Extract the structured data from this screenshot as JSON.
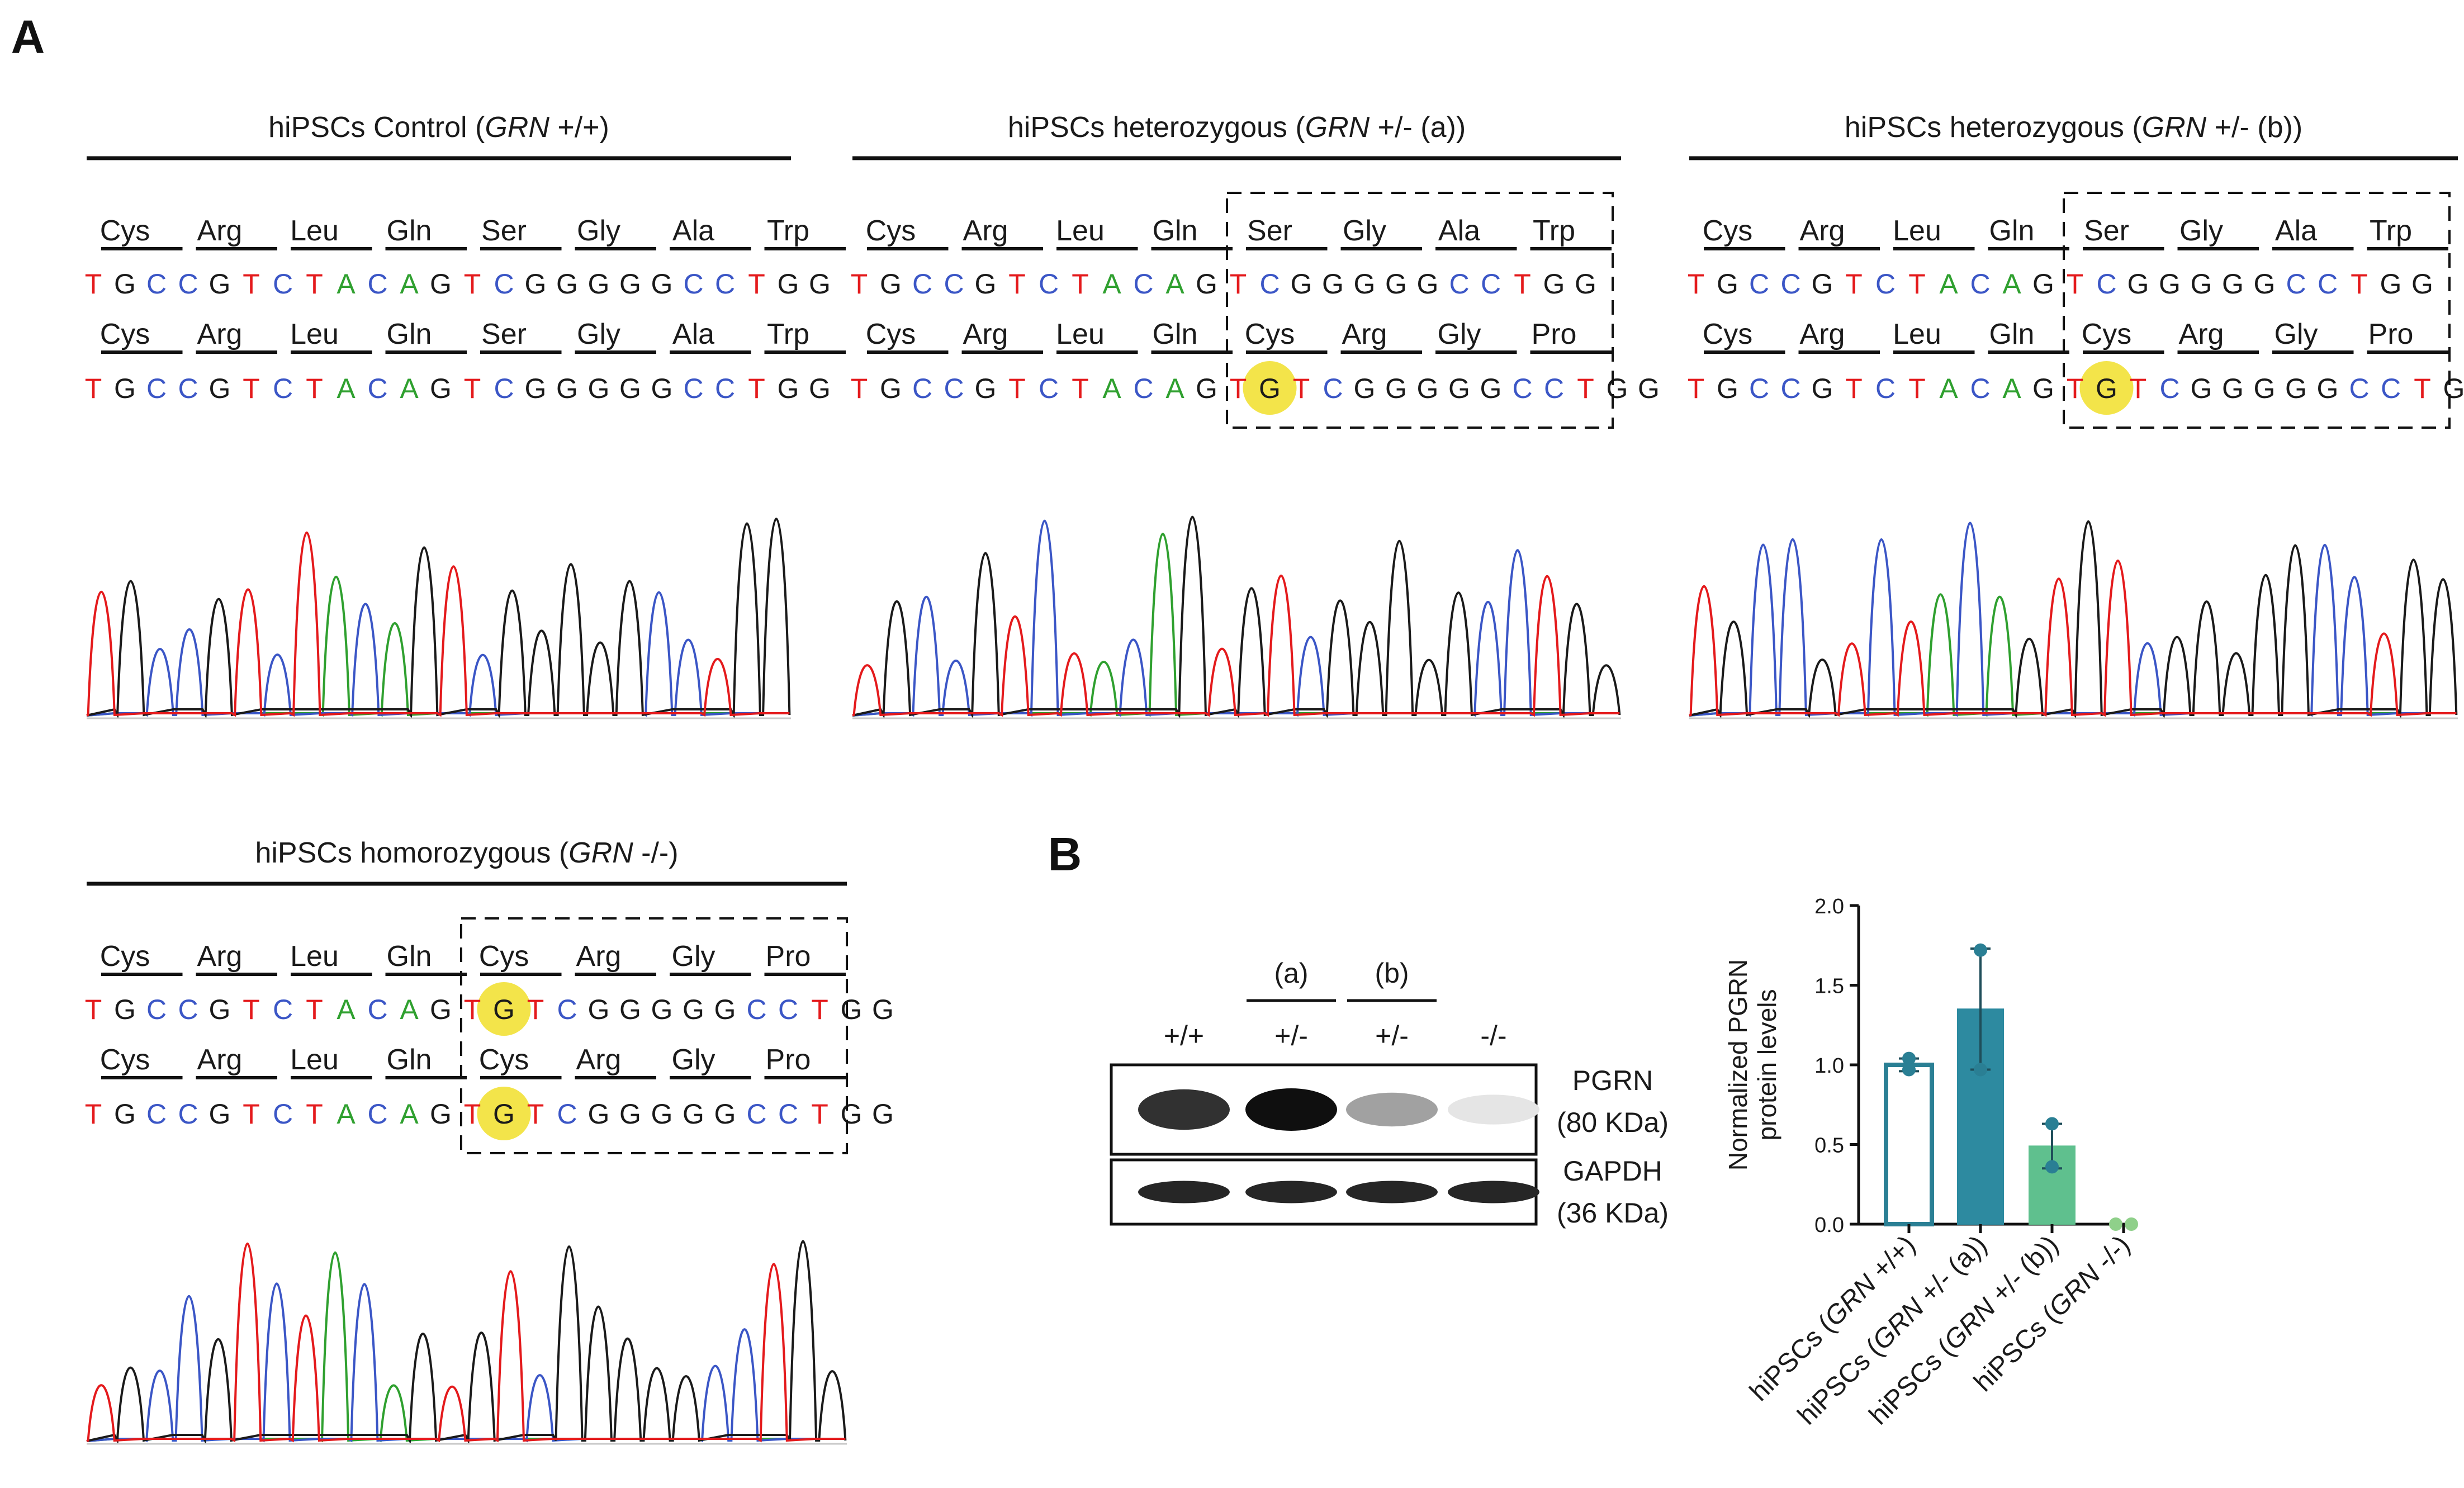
{
  "panel_labels": {
    "a": "A",
    "b": "B"
  },
  "colors": {
    "A": "#2fa02f",
    "C": "#3b56c6",
    "G": "#1a1a1a",
    "T": "#e41a1c",
    "highlight": "#f3e44a",
    "wt_fill": "#ffffff",
    "wt_stroke": "#2a7f94",
    "het_a": "#2d8aa0",
    "het_b": "#5fc08e",
    "ko": "#8fd08a"
  },
  "panels": [
    {
      "id": "control",
      "title_pre": "hiPSCs Control (",
      "title_italic": "GRN",
      "title_post": " +/+)",
      "row1_aa": [
        "Cys",
        "Arg",
        "Leu",
        "Gln",
        "Ser",
        "Gly",
        "Ala",
        "Trp"
      ],
      "row1_seq": "TGCCGTCTACAGTCGGGGGCCTGG",
      "row2_aa": [
        "Cys",
        "Arg",
        "Leu",
        "Gln",
        "Ser",
        "Gly",
        "Ala",
        "Trp"
      ],
      "row2_seq": "TGCCGTCTACAGTCGGGGGCCTGG"
    },
    {
      "id": "het_a",
      "title_pre": "hiPSCs heterozygous (",
      "title_italic": "GRN",
      "title_post": " +/- (a))",
      "row1_aa": [
        "Cys",
        "Arg",
        "Leu",
        "Gln",
        "Ser",
        "Gly",
        "Ala",
        "Trp"
      ],
      "row1_seq": "TGCCGTCTACAGTCGGGGGCCTGG",
      "row2_aa": [
        "Cys",
        "Arg",
        "Leu",
        "Gln",
        "Cys",
        "Arg",
        "Gly",
        "Pro"
      ],
      "row2_seq": "TGCCGTCTACAGTGTCGGGGGCCTGG"
    },
    {
      "id": "het_b",
      "title_pre": "hiPSCs heterozygous (",
      "title_italic": "GRN",
      "title_post": " +/- (b))",
      "row1_aa": [
        "Cys",
        "Arg",
        "Leu",
        "Gln",
        "Ser",
        "Gly",
        "Ala",
        "Trp"
      ],
      "row1_seq": "TGCCGTCTACAGTCGGGGGCCTGG",
      "row2_aa": [
        "Cys",
        "Arg",
        "Leu",
        "Gln",
        "Cys",
        "Arg",
        "Gly",
        "Pro"
      ],
      "row2_seq": "TGCCGTCTACAGTGTCGGGGGCCTGG"
    },
    {
      "id": "homo",
      "title_pre": "hiPSCs homorozygous (",
      "title_italic": "GRN",
      "title_post": " -/-)",
      "row1_aa": [
        "Cys",
        "Arg",
        "Leu",
        "Gln",
        "Cys",
        "Arg",
        "Gly",
        "Pro"
      ],
      "row1_seq": "TGCCGTCTACAGTGTCGGGGGCCTGG",
      "row2_aa": [
        "Cys",
        "Arg",
        "Leu",
        "Gln",
        "Cys",
        "Arg",
        "Gly",
        "Pro"
      ],
      "row2_seq": "TGCCGTCTACAGTGTCGGGGGCCTGG"
    }
  ],
  "western": {
    "groups": [
      "(a)",
      "(b)"
    ],
    "lanes": [
      "+/+",
      "+/-",
      "+/-",
      "-/-"
    ],
    "pgrn_label": "PGRN",
    "pgrn_size": "(80 KDa)",
    "gapdh_label": "GAPDH",
    "gapdh_size": "(36 KDa)",
    "pgrn_intensity": [
      0.85,
      1.0,
      0.35,
      0.05
    ],
    "gapdh_intensity": [
      0.9,
      0.9,
      0.9,
      0.9
    ]
  },
  "chart_data": {
    "type": "bar",
    "ylabel": "Normalized PGRN protein levels",
    "ylim": [
      0,
      2.0
    ],
    "yticks": [
      "0.0",
      "0.5",
      "1.0",
      "1.5",
      "2.0"
    ],
    "categories": [
      {
        "pre": "hiPSCs (",
        "italic": "GRN",
        "post": " +/+)"
      },
      {
        "pre": "hiPSCs (",
        "italic": "GRN",
        "post": " +/- (a))"
      },
      {
        "pre": "hiPSCs (",
        "italic": "GRN",
        "post": " +/- (b))"
      },
      {
        "pre": "hiPSCs (",
        "italic": "GRN",
        "post": " -/-)"
      }
    ],
    "values": [
      1.0,
      1.35,
      0.49,
      0.0
    ],
    "errors": [
      0.04,
      0.38,
      0.14,
      0.0
    ],
    "points": [
      [
        1.04,
        0.97
      ],
      [
        1.72,
        0.97
      ],
      [
        0.63,
        0.36
      ],
      [
        0.0,
        0.0
      ]
    ]
  }
}
